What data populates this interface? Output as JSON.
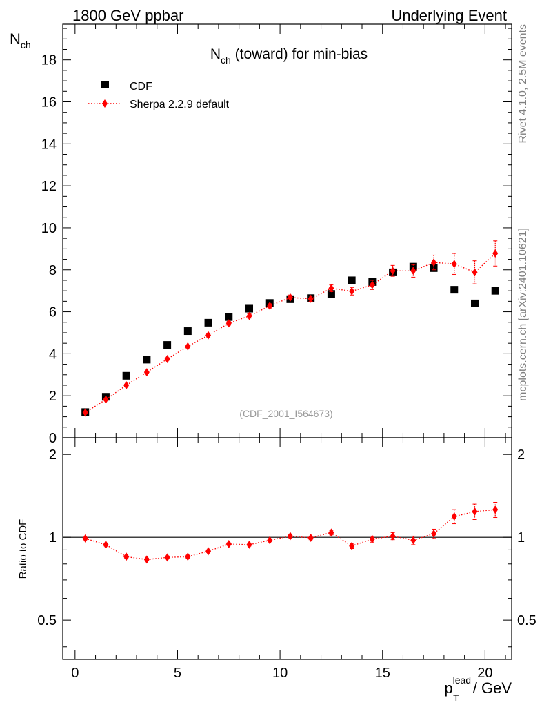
{
  "header": {
    "left": "1800 GeV ppbar",
    "right": "Underlying Event"
  },
  "side": {
    "rivet": "Rivet 4.1.0,  2.5M events",
    "mcplots": "mcplots.cern.ch [arXiv:2401.10621]"
  },
  "chart_data": [
    {
      "type": "scatter",
      "title_main": "N",
      "title_sub": "ch",
      "title_rest": " (toward) for min-bias",
      "ylabel_main": "N",
      "ylabel_sub": "ch",
      "ylim": [
        0,
        19.7
      ],
      "xlim": [
        -0.6,
        21.3
      ],
      "yticks": [
        0,
        2,
        4,
        6,
        8,
        10,
        12,
        14,
        16,
        18
      ],
      "analysis_tag": "(CDF_2001_I564673)",
      "legend": {
        "position": "top-left",
        "entries": [
          "CDF",
          "Sherpa 2.2.9 default"
        ]
      },
      "series": [
        {
          "name": "CDF",
          "color": "#000000",
          "marker": "square",
          "x": [
            0.5,
            1.5,
            2.5,
            3.5,
            4.5,
            5.5,
            6.5,
            7.5,
            8.5,
            9.5,
            10.5,
            11.5,
            12.5,
            13.5,
            14.5,
            15.5,
            16.5,
            17.5,
            18.5,
            19.5,
            20.5
          ],
          "y": [
            1.22,
            1.95,
            2.95,
            3.72,
            4.42,
            5.08,
            5.48,
            5.75,
            6.15,
            6.42,
            6.6,
            6.65,
            6.85,
            7.5,
            7.42,
            7.88,
            8.15,
            8.08,
            7.05,
            6.4,
            7.0
          ]
        },
        {
          "name": "Sherpa 2.2.9 default",
          "color": "#ff0000",
          "marker": "diamond",
          "line": "dotted",
          "x": [
            0.5,
            1.5,
            2.5,
            3.5,
            4.5,
            5.5,
            6.5,
            7.5,
            8.5,
            9.5,
            10.5,
            11.5,
            12.5,
            13.5,
            14.5,
            15.5,
            16.5,
            17.5,
            18.5,
            19.5,
            20.5
          ],
          "y": [
            1.2,
            1.82,
            2.5,
            3.12,
            3.75,
            4.35,
            4.88,
            5.45,
            5.8,
            6.28,
            6.68,
            6.62,
            7.12,
            6.98,
            7.28,
            7.95,
            7.95,
            8.35,
            8.28,
            7.88,
            8.78
          ],
          "yerr": [
            0.03,
            0.04,
            0.05,
            0.05,
            0.06,
            0.07,
            0.08,
            0.09,
            0.1,
            0.1,
            0.12,
            0.13,
            0.16,
            0.18,
            0.22,
            0.26,
            0.3,
            0.35,
            0.5,
            0.55,
            0.6
          ]
        }
      ]
    },
    {
      "type": "scatter",
      "ylabel": "Ratio to CDF",
      "xlabel_main": "p",
      "xlabel_sup": "lead",
      "xlabel_sub": "T",
      "xlabel_rest": " / GeV",
      "ylim": [
        0.36,
        2.3
      ],
      "xlim": [
        -0.6,
        21.3
      ],
      "yticks": [
        0.5,
        1,
        2
      ],
      "ytick_labels": [
        "0.5",
        "1",
        "2"
      ],
      "xticks": [
        0,
        5,
        10,
        15,
        20
      ],
      "xtick_labels": [
        "0",
        "5",
        "10",
        "15",
        "20"
      ],
      "reference": 1,
      "series": [
        {
          "name": "Sherpa 2.2.9 default / CDF",
          "color": "#ff0000",
          "marker": "diamond",
          "line": "dotted",
          "x": [
            0.5,
            1.5,
            2.5,
            3.5,
            4.5,
            5.5,
            6.5,
            7.5,
            8.5,
            9.5,
            10.5,
            11.5,
            12.5,
            13.5,
            14.5,
            15.5,
            16.5,
            17.5,
            18.5,
            19.5,
            20.5
          ],
          "y": [
            0.99,
            0.94,
            0.85,
            0.83,
            0.845,
            0.85,
            0.89,
            0.945,
            0.94,
            0.975,
            1.01,
            0.995,
            1.04,
            0.93,
            0.985,
            1.01,
            0.975,
            1.03,
            1.19,
            1.24,
            1.26
          ],
          "yerr": [
            0.01,
            0.01,
            0.01,
            0.01,
            0.01,
            0.01,
            0.01,
            0.01,
            0.01,
            0.01,
            0.015,
            0.015,
            0.02,
            0.02,
            0.025,
            0.03,
            0.035,
            0.04,
            0.07,
            0.08,
            0.08
          ]
        }
      ]
    }
  ]
}
